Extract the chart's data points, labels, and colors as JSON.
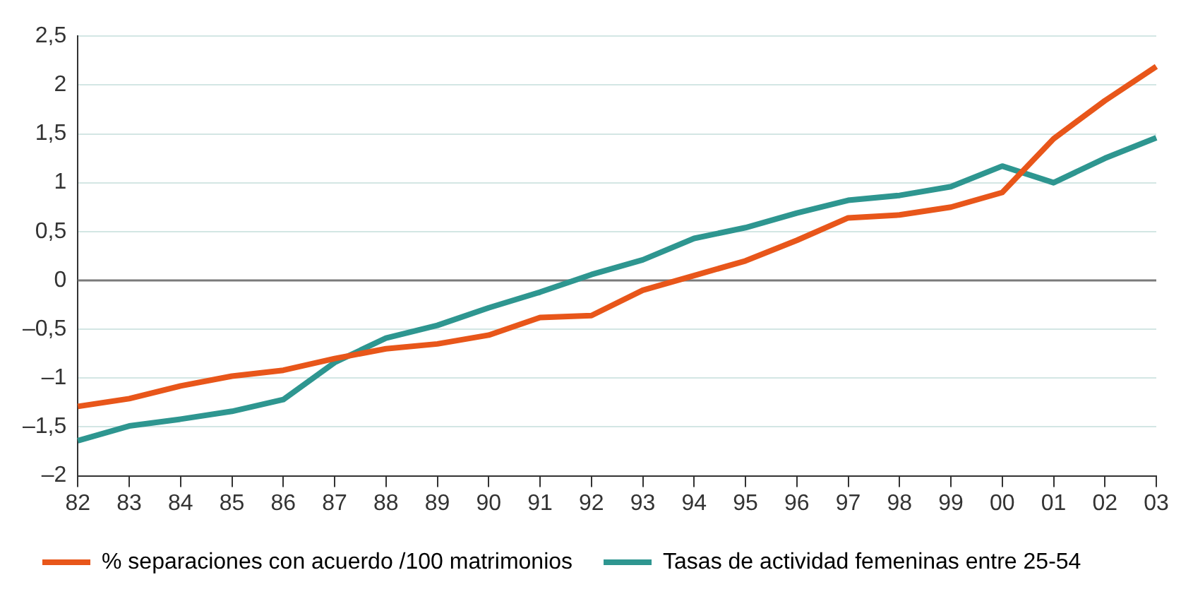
{
  "chart_data": {
    "type": "line",
    "categories": [
      "82",
      "83",
      "84",
      "85",
      "86",
      "87",
      "88",
      "89",
      "90",
      "91",
      "92",
      "93",
      "94",
      "95",
      "96",
      "97",
      "98",
      "99",
      "00",
      "01",
      "02",
      "03"
    ],
    "series": [
      {
        "name": "% separaciones con acuerdo /100 matrimonios",
        "color": "#e8561a",
        "values": [
          -1.29,
          -1.21,
          -1.08,
          -0.98,
          -0.92,
          -0.8,
          -0.7,
          -0.65,
          -0.56,
          -0.38,
          -0.36,
          -0.1,
          0.05,
          0.2,
          0.41,
          0.64,
          0.67,
          0.75,
          0.9,
          1.45,
          1.84,
          2.19
        ]
      },
      {
        "name": "Tasas de actividad femeninas entre 25-54",
        "color": "#2e9690",
        "values": [
          -1.64,
          -1.49,
          -1.42,
          -1.34,
          -1.22,
          -0.84,
          -0.59,
          -0.46,
          -0.28,
          -0.12,
          0.06,
          0.21,
          0.43,
          0.54,
          0.69,
          0.82,
          0.87,
          0.96,
          1.17,
          1.0,
          1.25,
          1.46
        ]
      }
    ],
    "ylim": [
      -2,
      2.5
    ],
    "yticks": [
      {
        "value": -2,
        "label": "–2"
      },
      {
        "value": -1.5,
        "label": "–1,5"
      },
      {
        "value": -1,
        "label": "–1"
      },
      {
        "value": -0.5,
        "label": "–0,5"
      },
      0,
      {
        "value": 0.5,
        "label": "0,5"
      },
      1,
      {
        "value": 1.5,
        "label": "1,5"
      },
      2,
      {
        "value": 2.5,
        "label": "2,5"
      }
    ],
    "ref_lines": [
      {
        "axis": "y",
        "value": 0,
        "color": "#7a7a7a"
      }
    ],
    "grid": "y",
    "legend": "bottom",
    "marker": "none",
    "line_style": "solid"
  }
}
